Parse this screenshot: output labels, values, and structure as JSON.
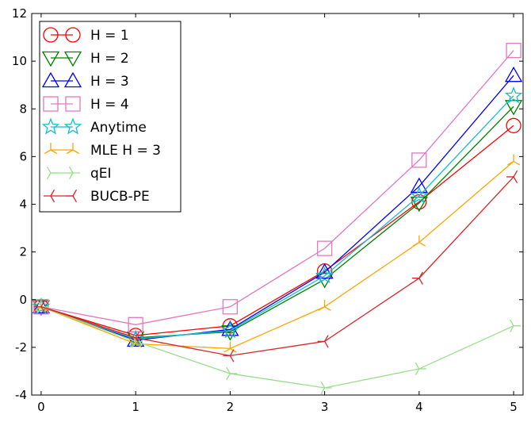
{
  "chart_data": {
    "type": "line",
    "title": "",
    "xlabel": "",
    "ylabel": "",
    "xlim": [
      -0.1,
      5.1
    ],
    "ylim": [
      -4,
      12
    ],
    "x_ticks": [
      0,
      1,
      2,
      3,
      4,
      5
    ],
    "y_ticks": [
      -4,
      -2,
      0,
      2,
      4,
      6,
      8,
      10,
      12
    ],
    "grid": false,
    "legend_position": "top-left",
    "x": [
      0,
      1,
      2,
      3,
      4,
      5
    ],
    "series": [
      {
        "name": "H = 1",
        "color": "#ff0000",
        "marker": "circle",
        "values": [
          -0.3,
          -1.5,
          -1.1,
          1.2,
          4.1,
          7.3
        ]
      },
      {
        "name": "H = 2",
        "color": "#008000",
        "marker": "triangle-down",
        "values": [
          -0.3,
          -1.6,
          -1.35,
          0.85,
          4.05,
          8.1
        ]
      },
      {
        "name": "H = 3",
        "color": "#0000ff",
        "marker": "triangle-up",
        "values": [
          -0.3,
          -1.7,
          -1.25,
          1.15,
          4.75,
          9.4
        ]
      },
      {
        "name": "H = 4",
        "color": "#e377c2",
        "marker": "square",
        "values": [
          -0.3,
          -1.05,
          -0.3,
          2.15,
          5.85,
          10.45
        ]
      },
      {
        "name": "Anytime",
        "color": "#17becf",
        "marker": "star",
        "values": [
          -0.3,
          -1.65,
          -1.3,
          1.0,
          4.35,
          8.55
        ]
      },
      {
        "name": "MLE H = 3",
        "color": "#ffa500",
        "marker": "tri-down",
        "values": [
          -0.3,
          -1.85,
          -2.05,
          -0.3,
          2.4,
          5.8
        ]
      },
      {
        "name": "qEI",
        "color": "#98df8a",
        "marker": "tri-right",
        "values": [
          -0.3,
          -1.75,
          -3.1,
          -3.7,
          -2.9,
          -1.1
        ]
      },
      {
        "name": "BUCB-PE",
        "color": "#d62728",
        "marker": "tri-left",
        "values": [
          -0.3,
          -1.6,
          -2.35,
          -1.75,
          0.9,
          5.15
        ]
      }
    ]
  }
}
